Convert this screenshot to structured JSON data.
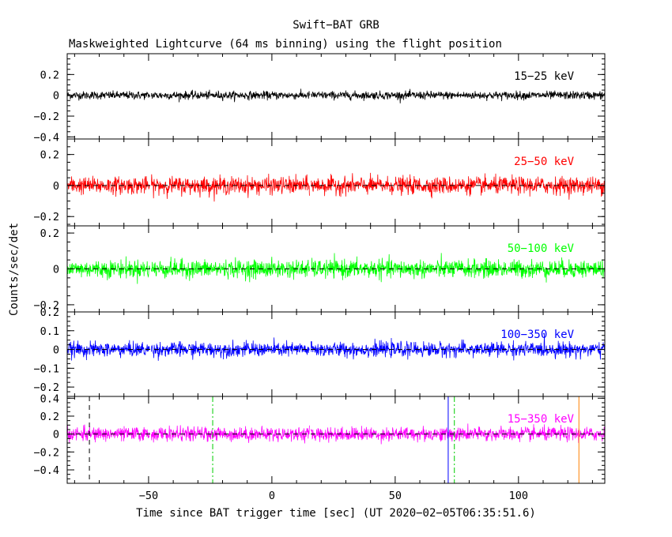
{
  "chart_data": {
    "type": "line",
    "title": "Swift−BAT GRB",
    "subtitle": "Maskweighted Lightcurve (64 ms binning) using the flight position",
    "xlabel": "Time since BAT trigger time [sec] (UT 2020−02−05T06:35:51.6)",
    "ylabel": "Counts/sec/det",
    "xlim": [
      -83,
      135
    ],
    "xticks": [
      -50,
      0,
      50,
      100
    ],
    "xtick_labels": [
      "−50",
      "0",
      "50",
      "100"
    ],
    "grid": false,
    "data_gaps": [
      [
        -49.5,
        -49.0
      ],
      [
        15.3,
        15.8
      ]
    ],
    "panels": [
      {
        "name": "15−25 keV",
        "color": "#000000",
        "ylim": [
          -0.42,
          0.4
        ],
        "yticks": [
          -0.4,
          -0.2,
          0,
          0.2
        ],
        "ytick_labels": [
          "−0.4",
          "−0.2",
          "0",
          "0.2"
        ],
        "zero_line": false,
        "noise_amplitude": 0.035
      },
      {
        "name": "25−50 keV",
        "color": "#ff0000",
        "ylim": [
          -0.26,
          0.3
        ],
        "yticks": [
          -0.2,
          0,
          0.2
        ],
        "ytick_labels": [
          "−0.2",
          "0",
          "0.2"
        ],
        "zero_line": true,
        "noise_amplitude": 0.05
      },
      {
        "name": "50−100 keV",
        "color": "#00ff00",
        "ylim": [
          -0.24,
          0.24
        ],
        "yticks": [
          -0.2,
          0,
          0.2
        ],
        "ytick_labels": [
          "−0.2",
          "0",
          "0.2"
        ],
        "zero_line": true,
        "noise_amplitude": 0.045
      },
      {
        "name": "100−350 keV",
        "color": "#0000ff",
        "ylim": [
          -0.25,
          0.2
        ],
        "yticks": [
          -0.2,
          -0.1,
          0,
          0.1,
          0.2
        ],
        "ytick_labels": [
          "−0.2",
          "−0.1",
          "0",
          "0.1",
          "0.2"
        ],
        "zero_line": true,
        "noise_amplitude": 0.035
      },
      {
        "name": "15−350 keV",
        "color": "#ff00ff",
        "ylim": [
          -0.55,
          0.42
        ],
        "yticks": [
          -0.4,
          -0.2,
          0,
          0.2,
          0.4
        ],
        "ytick_labels": [
          "−0.4",
          "−0.2",
          "0",
          "0.2",
          "0.4"
        ],
        "zero_line": true,
        "noise_amplitude": 0.07
      }
    ],
    "markers": [
      {
        "x": -74,
        "color": "#000000",
        "style": "dashed"
      },
      {
        "x": -24,
        "color": "#00cc00",
        "style": "dashdot"
      },
      {
        "x": 71.5,
        "color": "#0000ff",
        "style": "solid"
      },
      {
        "x": 74,
        "color": "#00cc00",
        "style": "dashdot"
      },
      {
        "x": 124.5,
        "color": "#ff8000",
        "style": "solid"
      }
    ]
  }
}
